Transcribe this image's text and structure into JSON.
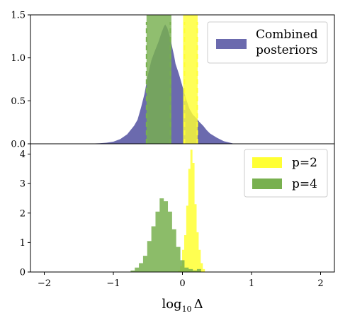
{
  "chart_data": [
    {
      "type": "histogram",
      "panel": "top",
      "xlim": [
        -2.2,
        2.2
      ],
      "ylim": [
        0,
        1.5
      ],
      "yticks": [
        0.0,
        0.5,
        1.0,
        1.5
      ],
      "ytick_labels": [
        "0.0",
        "0.5",
        "1.0",
        "1.5"
      ],
      "series": [
        {
          "name": "Combined\nposteriors",
          "color": "#6b6aae",
          "x": [
            -1.3,
            -1.2,
            -1.1,
            -1.0,
            -0.9,
            -0.8,
            -0.7,
            -0.65,
            -0.6,
            -0.55,
            -0.5,
            -0.45,
            -0.4,
            -0.35,
            -0.3,
            -0.27,
            -0.25,
            -0.22,
            -0.2,
            -0.17,
            -0.15,
            -0.12,
            -0.1,
            -0.05,
            0.0,
            0.05,
            0.1,
            0.15,
            0.2,
            0.25,
            0.3,
            0.35,
            0.4,
            0.5,
            0.6,
            0.7,
            0.75
          ],
          "values": [
            0.003,
            0.006,
            0.012,
            0.025,
            0.055,
            0.11,
            0.21,
            0.28,
            0.42,
            0.58,
            0.8,
            0.97,
            1.08,
            1.18,
            1.3,
            1.36,
            1.39,
            1.35,
            1.3,
            1.21,
            1.13,
            1.02,
            0.93,
            0.81,
            0.67,
            0.53,
            0.41,
            0.34,
            0.3,
            0.25,
            0.21,
            0.16,
            0.12,
            0.07,
            0.03,
            0.01,
            0.0
          ]
        }
      ],
      "bands": [
        {
          "group": "p=4",
          "color": "#78b04f",
          "range": [
            -0.52,
            -0.16
          ],
          "dashed_lines": [
            -0.52,
            -0.175
          ]
        },
        {
          "group": "p=2",
          "color": "#ffff33",
          "range": [
            0.01,
            0.22
          ],
          "dashed_lines": [
            0.03,
            0.215
          ]
        }
      ],
      "legend_placement": "top-right"
    },
    {
      "type": "histogram",
      "panel": "bottom",
      "xlim": [
        -2.2,
        2.2
      ],
      "ylim": [
        0,
        4.35
      ],
      "yticks": [
        0,
        1,
        2,
        3,
        4
      ],
      "ytick_labels": [
        "0",
        "1",
        "2",
        "3",
        "4"
      ],
      "xticks": [
        -2,
        -1,
        0,
        1,
        2
      ],
      "xtick_labels": [
        "−2",
        "−1",
        "0",
        "1",
        "2"
      ],
      "xlabel": "log10 Δ",
      "series": [
        {
          "name": "p=2",
          "color": "#ffff33",
          "x": [
            -0.05,
            -0.02,
            0.01,
            0.04,
            0.07,
            0.1,
            0.13,
            0.16,
            0.19,
            0.22,
            0.25,
            0.28,
            0.31
          ],
          "values": [
            0.05,
            0.2,
            0.75,
            1.25,
            2.25,
            3.5,
            4.15,
            3.7,
            2.3,
            1.35,
            0.75,
            0.3,
            0.1
          ]
        },
        {
          "name": "p=4",
          "color": "#78b04f",
          "x": [
            -0.72,
            -0.66,
            -0.6,
            -0.54,
            -0.48,
            -0.42,
            -0.36,
            -0.3,
            -0.24,
            -0.18,
            -0.12,
            -0.06,
            0.0,
            0.06,
            0.12,
            0.18,
            0.24
          ],
          "values": [
            0.05,
            0.15,
            0.3,
            0.55,
            1.05,
            1.55,
            2.05,
            2.5,
            2.4,
            2.05,
            1.45,
            0.85,
            0.4,
            0.15,
            0.1,
            0.05,
            0.1
          ]
        }
      ],
      "legend_placement": "top-right"
    }
  ]
}
